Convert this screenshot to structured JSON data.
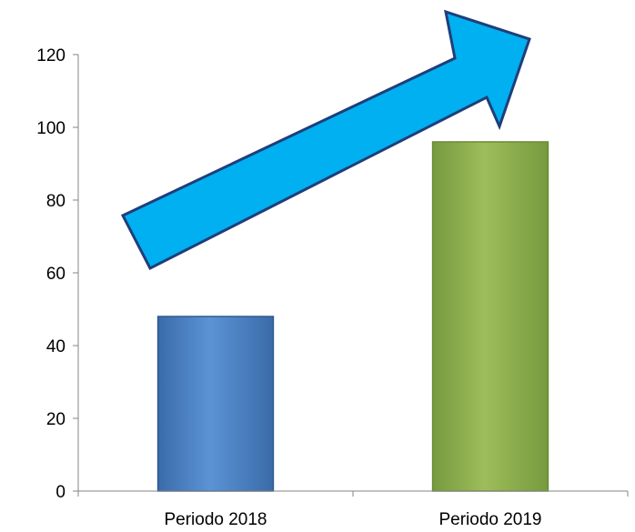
{
  "chart_data": {
    "type": "bar",
    "categories": [
      "Periodo 2018",
      "Periodo 2019"
    ],
    "values": [
      48,
      96
    ],
    "title": "",
    "xlabel": "",
    "ylabel": "",
    "ylim": [
      0,
      120
    ],
    "yticks": [
      0,
      20,
      40,
      60,
      80,
      100,
      120
    ],
    "grid": false,
    "legend": "none",
    "colors": [
      "#4f81bd",
      "#9bbb59"
    ],
    "annotations": [
      {
        "type": "arrow",
        "direction": "up-right",
        "color": "#00b0f0"
      }
    ]
  }
}
